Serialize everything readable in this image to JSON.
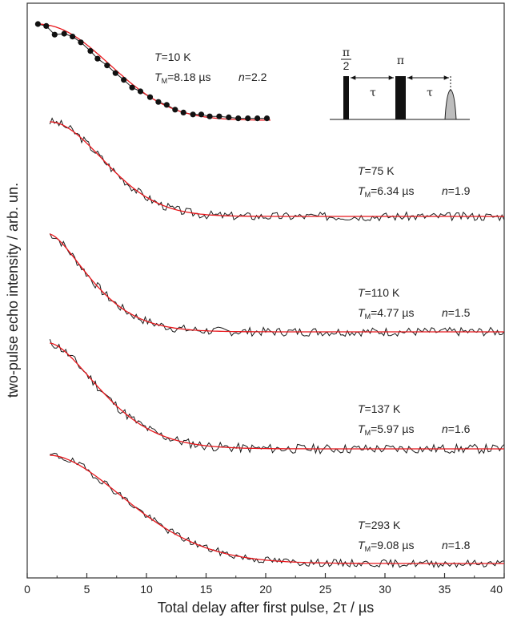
{
  "chart_data": {
    "type": "line",
    "xlabel": "Total delay after first pulse, 2τ / µs",
    "ylabel": "two-pulse echo intensity / arb. un.",
    "xlim": [
      0,
      40
    ],
    "x_ticks": [
      "0",
      "5",
      "10",
      "15",
      "20",
      "25",
      "30",
      "35",
      "40"
    ],
    "y_ticks_labeled": false,
    "grid": false,
    "colors": {
      "data": "#1a1a1a",
      "fit": "#e8161b",
      "echo": "#bdbdbd"
    },
    "series": [
      {
        "T_prefix": "T",
        "T_value": "=10 K",
        "TM_prefix": "T",
        "TM_sub": "M",
        "TM_value": "=8.18 µs",
        "n_prefix": "n",
        "n_value": "=2.2",
        "tm": 8.18,
        "n": 2.2,
        "x_start": 0.9,
        "x_end": 20.1,
        "marker": "circle",
        "points": [
          [
            0.9,
            1.0
          ],
          [
            1.6,
            0.98
          ],
          [
            2.3,
            0.89
          ],
          [
            3.1,
            0.9
          ],
          [
            3.8,
            0.87
          ],
          [
            4.5,
            0.81
          ],
          [
            5.3,
            0.72
          ],
          [
            5.9,
            0.64
          ],
          [
            6.7,
            0.57
          ],
          [
            7.4,
            0.49
          ],
          [
            8.1,
            0.42
          ],
          [
            8.8,
            0.34
          ],
          [
            9.5,
            0.3
          ],
          [
            10.3,
            0.24
          ],
          [
            11.0,
            0.19
          ],
          [
            11.7,
            0.16
          ],
          [
            12.4,
            0.11
          ],
          [
            13.1,
            0.08
          ],
          [
            13.9,
            0.06
          ],
          [
            14.6,
            0.06
          ],
          [
            15.3,
            0.04
          ],
          [
            16.1,
            0.04
          ],
          [
            16.9,
            0.03
          ],
          [
            17.7,
            0.02
          ],
          [
            18.5,
            0.02
          ],
          [
            19.3,
            0.02
          ],
          [
            20.1,
            0.02
          ]
        ]
      },
      {
        "T_prefix": "T",
        "T_value": "=75 K",
        "TM_prefix": "T",
        "TM_sub": "M",
        "TM_value": "=6.34 µs",
        "n_prefix": "n",
        "n_value": "=1.9",
        "tm": 6.34,
        "n": 1.9,
        "x_start": 1.9,
        "x_end": 40,
        "noise": 0.045,
        "seed": 3
      },
      {
        "T_prefix": "T",
        "T_value": "=110 K",
        "TM_prefix": "T",
        "TM_sub": "M",
        "TM_value": "=4.77 µs",
        "n_prefix": "n",
        "n_value": "=1.5",
        "tm": 4.77,
        "n": 1.5,
        "x_start": 1.9,
        "x_end": 40,
        "noise": 0.045,
        "seed": 7
      },
      {
        "T_prefix": "T",
        "T_value": "=137 K",
        "TM_prefix": "T",
        "TM_sub": "M",
        "TM_value": "=5.97 µs",
        "n_prefix": "n",
        "n_value": "=1.6",
        "tm": 5.97,
        "n": 1.6,
        "x_start": 1.9,
        "x_end": 40,
        "noise": 0.045,
        "seed": 11
      },
      {
        "T_prefix": "T",
        "T_value": "=293 K",
        "TM_prefix": "T",
        "TM_sub": "M",
        "TM_value": "=9.08 µs",
        "n_prefix": "n",
        "n_value": "=1.8",
        "tm": 9.08,
        "n": 1.8,
        "x_start": 1.9,
        "x_end": 40,
        "noise": 0.035,
        "seed": 19
      }
    ],
    "inset": {
      "pulse1_num": "π",
      "pulse1_den": "2",
      "pulse2": "π",
      "delay1": "τ",
      "delay2": "τ"
    }
  }
}
